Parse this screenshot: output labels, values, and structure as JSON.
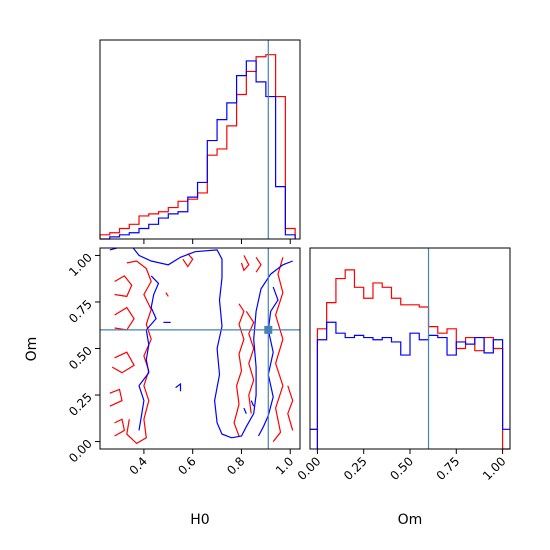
{
  "chart_data": [
    {
      "panel": "H0-marginal",
      "type": "histogram",
      "xlim": [
        0.22,
        1.04
      ],
      "bins_edges": [
        0.22,
        0.26,
        0.3,
        0.34,
        0.38,
        0.42,
        0.46,
        0.5,
        0.54,
        0.58,
        0.62,
        0.66,
        0.7,
        0.74,
        0.78,
        0.82,
        0.86,
        0.9,
        0.94,
        0.98,
        1.02
      ],
      "series": [
        {
          "color": "#ff0000",
          "values": [
            2,
            3,
            5,
            7,
            11,
            12,
            13,
            15,
            18,
            19,
            22,
            40,
            43,
            54,
            69,
            80,
            87,
            88,
            68,
            5
          ]
        },
        {
          "color": "#0000ff",
          "values": [
            0,
            1,
            2,
            3,
            5,
            7,
            10,
            12,
            13,
            20,
            27,
            47,
            57,
            65,
            78,
            85,
            75,
            68,
            25,
            2
          ]
        }
      ],
      "truth_x": 0.91,
      "xticks": [
        "0.4",
        "0.6",
        "0.8",
        "1.0"
      ]
    },
    {
      "panel": "Om-marginal",
      "type": "histogram",
      "xlim": [
        -0.04,
        1.04
      ],
      "bins_edges": [
        0.0,
        0.05,
        0.1,
        0.15,
        0.2,
        0.25,
        0.3,
        0.35,
        0.4,
        0.45,
        0.5,
        0.55,
        0.6,
        0.65,
        0.7,
        0.75,
        0.8,
        0.85,
        0.9,
        0.95,
        1.0
      ],
      "series": [
        {
          "color": "#ff0000",
          "values": [
            0.55,
            0.67,
            0.78,
            0.82,
            0.74,
            0.69,
            0.76,
            0.74,
            0.69,
            0.66,
            0.66,
            0.65,
            0.56,
            0.53,
            0.55,
            0.46,
            0.51,
            0.45,
            0.51,
            0.46
          ]
        },
        {
          "color": "#0000ff",
          "values": [
            0.5,
            0.58,
            0.53,
            0.51,
            0.52,
            0.51,
            0.5,
            0.51,
            0.49,
            0.43,
            0.53,
            0.5,
            0.52,
            0.51,
            0.43,
            0.49,
            0.48,
            0.51,
            0.44,
            0.5
          ]
        }
      ],
      "truth_x": 0.6,
      "xticks": [
        "0.00",
        "0.25",
        "0.50",
        "0.75",
        "1.00"
      ],
      "xlabel": "Om"
    },
    {
      "panel": "H0-Om-joint",
      "type": "contour",
      "xlim": [
        0.22,
        1.04
      ],
      "ylim": [
        -0.04,
        1.04
      ],
      "xlabel": "H0",
      "ylabel": "Om",
      "xticks": [
        "0.4",
        "0.6",
        "0.8",
        "1.0"
      ],
      "yticks": [
        "0.00",
        "0.25",
        "0.50",
        "0.75",
        "1.00"
      ],
      "truth": {
        "x": 0.91,
        "y": 0.6
      },
      "series": [
        {
          "color": "#ff0000",
          "contours": [
            [
              [
                0.33,
                0.96
              ],
              [
                0.37,
                0.97
              ],
              [
                0.41,
                0.93
              ],
              [
                0.43,
                0.86
              ],
              [
                0.4,
                0.79
              ],
              [
                0.43,
                0.71
              ],
              [
                0.41,
                0.63
              ],
              [
                0.43,
                0.55
              ],
              [
                0.4,
                0.46
              ],
              [
                0.42,
                0.38
              ],
              [
                0.4,
                0.3
              ],
              [
                0.42,
                0.22
              ],
              [
                0.4,
                0.12
              ],
              [
                0.41,
                0.02
              ],
              [
                0.37,
                -0.01
              ],
              [
                0.33,
                0.04
              ],
              [
                0.34,
                0.12
              ]
            ],
            [
              [
                0.28,
                0.86
              ],
              [
                0.32,
                0.89
              ],
              [
                0.35,
                0.84
              ],
              [
                0.33,
                0.78
              ],
              [
                0.28,
                0.79
              ]
            ],
            [
              [
                0.28,
                0.68
              ],
              [
                0.33,
                0.72
              ],
              [
                0.36,
                0.66
              ],
              [
                0.33,
                0.6
              ],
              [
                0.28,
                0.61
              ]
            ],
            [
              [
                0.28,
                0.45
              ],
              [
                0.33,
                0.48
              ],
              [
                0.36,
                0.41
              ],
              [
                0.31,
                0.37
              ],
              [
                0.27,
                0.4
              ]
            ],
            [
              [
                0.26,
                0.26
              ],
              [
                0.3,
                0.28
              ],
              [
                0.31,
                0.22
              ],
              [
                0.26,
                0.19
              ]
            ],
            [
              [
                0.28,
                0.1
              ],
              [
                0.31,
                0.12
              ],
              [
                0.32,
                0.06
              ],
              [
                0.28,
                0.03
              ]
            ],
            [
              [
                0.58,
                1.01
              ],
              [
                0.6,
                0.98
              ],
              [
                0.58,
                0.94
              ],
              [
                0.56,
                0.98
              ]
            ],
            [
              [
                0.81,
                1.0
              ],
              [
                0.83,
                0.95
              ],
              [
                0.81,
                0.92
              ],
              [
                0.8,
                0.96
              ]
            ],
            [
              [
                0.86,
                0.99
              ],
              [
                0.88,
                0.95
              ],
              [
                0.86,
                0.91
              ]
            ],
            [
              [
                0.97,
                0.99
              ],
              [
                0.95,
                0.9
              ],
              [
                0.97,
                0.8
              ],
              [
                0.94,
                0.68
              ],
              [
                0.97,
                0.55
              ],
              [
                0.94,
                0.42
              ],
              [
                0.97,
                0.3
              ],
              [
                0.94,
                0.18
              ],
              [
                0.96,
                0.05
              ],
              [
                0.93,
                0.0
              ]
            ],
            [
              [
                0.79,
                0.74
              ],
              [
                0.81,
                0.7
              ],
              [
                0.79,
                0.63
              ],
              [
                0.81,
                0.55
              ],
              [
                0.79,
                0.47
              ],
              [
                0.8,
                0.38
              ],
              [
                0.78,
                0.3
              ],
              [
                0.79,
                0.2
              ],
              [
                0.77,
                0.1
              ],
              [
                0.79,
                0.03
              ]
            ],
            [
              [
                0.82,
                0.7
              ],
              [
                0.85,
                0.64
              ],
              [
                0.83,
                0.58
              ],
              [
                0.85,
                0.5
              ],
              [
                0.83,
                0.42
              ],
              [
                0.85,
                0.33
              ],
              [
                0.83,
                0.25
              ],
              [
                0.84,
                0.15
              ]
            ],
            [
              [
                0.99,
                0.3
              ],
              [
                1.01,
                0.22
              ],
              [
                0.99,
                0.15
              ],
              [
                1.01,
                0.06
              ]
            ],
            [
              [
                0.49,
                0.8
              ],
              [
                0.5,
                0.78
              ]
            ]
          ]
        },
        {
          "color": "#0000ff",
          "contours": [
            [
              [
                0.26,
                1.03
              ],
              [
                0.32,
                1.05
              ]
            ],
            [
              [
                0.35,
                1.05
              ],
              [
                0.38,
                1.0
              ],
              [
                0.43,
                0.97
              ],
              [
                0.5,
                0.95
              ],
              [
                0.55,
                0.99
              ],
              [
                0.61,
                1.02
              ],
              [
                0.7,
                1.03
              ],
              [
                0.72,
                0.98
              ],
              [
                0.72,
                0.88
              ],
              [
                0.71,
                0.76
              ],
              [
                0.72,
                0.62
              ],
              [
                0.7,
                0.5
              ],
              [
                0.71,
                0.36
              ],
              [
                0.69,
                0.22
              ],
              [
                0.7,
                0.1
              ],
              [
                0.72,
                0.04
              ],
              [
                0.76,
                0.02
              ],
              [
                0.8,
                0.03
              ],
              [
                0.82,
                0.08
              ],
              [
                0.85,
                0.15
              ],
              [
                0.86,
                0.25
              ],
              [
                0.86,
                0.4
              ],
              [
                0.85,
                0.55
              ],
              [
                0.86,
                0.7
              ],
              [
                0.88,
                0.82
              ],
              [
                0.92,
                0.9
              ],
              [
                0.97,
                0.95
              ],
              [
                1.01,
                0.97
              ]
            ],
            [
              [
                0.43,
                0.89
              ],
              [
                0.46,
                0.85
              ],
              [
                0.44,
                0.79
              ],
              [
                0.43,
                0.72
              ],
              [
                0.45,
                0.66
              ],
              [
                0.41,
                0.6
              ],
              [
                0.42,
                0.52
              ],
              [
                0.41,
                0.44
              ],
              [
                0.42,
                0.37
              ],
              [
                0.38,
                0.3
              ],
              [
                0.4,
                0.22
              ],
              [
                0.39,
                0.14
              ],
              [
                0.38,
                0.06
              ]
            ],
            [
              [
                0.93,
                0.83
              ],
              [
                0.95,
                0.76
              ],
              [
                0.92,
                0.7
              ],
              [
                0.91,
                0.6
              ],
              [
                0.93,
                0.48
              ],
              [
                0.91,
                0.36
              ],
              [
                0.93,
                0.24
              ],
              [
                0.91,
                0.14
              ],
              [
                0.89,
                0.08
              ],
              [
                0.87,
                0.03
              ]
            ],
            [
              [
                0.53,
                0.29
              ],
              [
                0.55,
                0.31
              ],
              [
                0.55,
                0.27
              ]
            ],
            [
              [
                0.81,
                0.18
              ],
              [
                0.82,
                0.15
              ]
            ],
            [
              [
                0.84,
                0.22
              ],
              [
                0.85,
                0.19
              ]
            ],
            [
              [
                0.48,
                0.64
              ],
              [
                0.51,
                0.64
              ]
            ]
          ]
        }
      ]
    }
  ]
}
